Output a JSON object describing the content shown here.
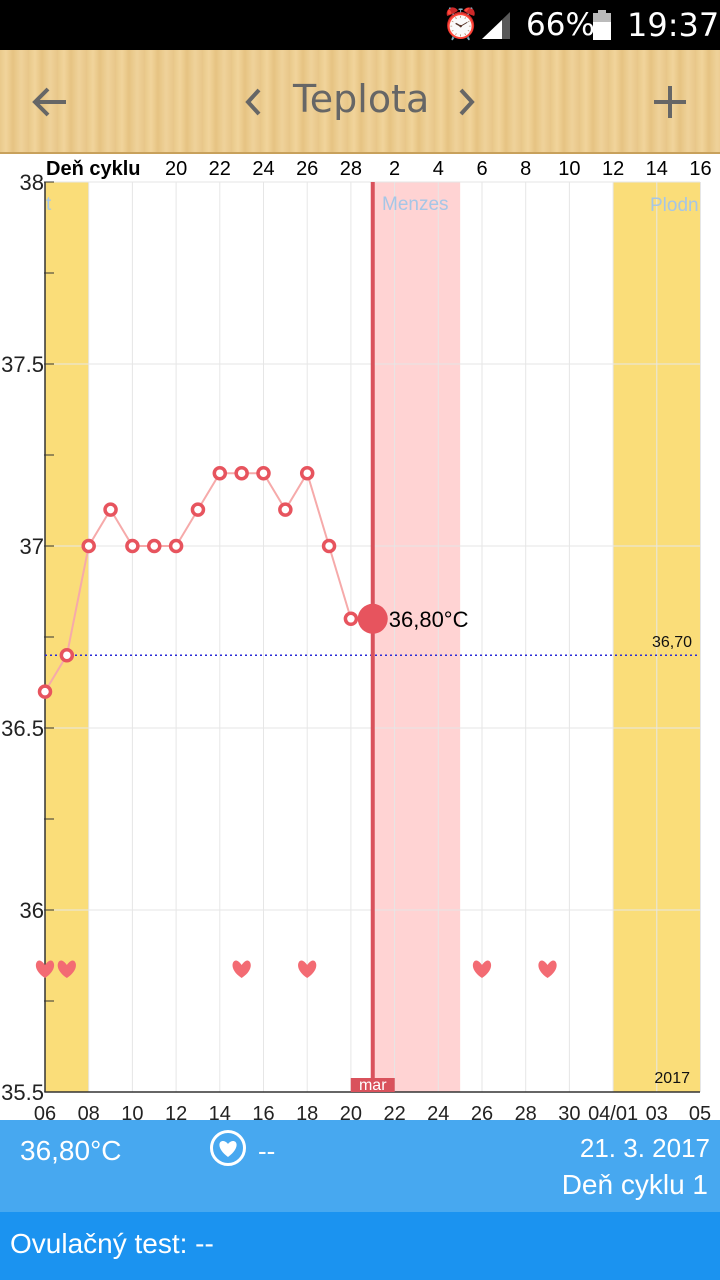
{
  "status": {
    "battery": "66%",
    "time": "19:37",
    "icons": [
      "alarm-icon",
      "signal-icon",
      "battery-icon"
    ]
  },
  "toolbar": {
    "title": "Teplota",
    "back_icon": "arrow-left-icon",
    "prev_icon": "chevron-left-icon",
    "next_icon": "chevron-right-icon",
    "add_icon": "plus-icon"
  },
  "chart_data": {
    "type": "line",
    "top_axis_title": "Deň cyklu",
    "top_ticks": [
      "20",
      "22",
      "24",
      "26",
      "28",
      "2",
      "4",
      "6",
      "8",
      "10",
      "12",
      "14",
      "16"
    ],
    "y_ticks": [
      "38",
      "37.5",
      "37",
      "36.5",
      "36",
      "35.5"
    ],
    "ylim": [
      35.5,
      38
    ],
    "bottom_ticks": [
      "06",
      "08",
      "10",
      "12",
      "14",
      "16",
      "18",
      "20",
      "22",
      "24",
      "26",
      "28",
      "30",
      "04/01",
      "03",
      "05"
    ],
    "month_label": "mar",
    "year_label": "2017",
    "band_labels": {
      "fertile_left": "t",
      "menses": "Menzes",
      "fertile_right": "Plodn"
    },
    "coverline": {
      "value": 36.7,
      "label": "36,70"
    },
    "x_dates": [
      "06.03",
      "07.03",
      "08.03",
      "09.03",
      "10.03",
      "11.03",
      "12.03",
      "13.03",
      "14.03",
      "15.03",
      "16.03",
      "17.03",
      "18.03",
      "19.03",
      "20.03",
      "21.03"
    ],
    "series": [
      {
        "values": [
          36.6,
          36.7,
          37.0,
          37.1,
          37.0,
          37.0,
          37.0,
          37.1,
          37.2,
          37.2,
          37.2,
          37.1,
          37.2,
          37.0,
          36.8,
          36.8
        ]
      }
    ],
    "selected": {
      "date": "21.03",
      "value": 36.8,
      "label": "36,80°C"
    },
    "hearts": [
      "06.03",
      "07.03",
      "15.03",
      "18.03",
      "26.03",
      "29.03"
    ],
    "colors": {
      "fertile": "#fadd79",
      "menses": "#ffd3d3",
      "line": "#f6aaaa",
      "marker": "#e7545e",
      "coverline": "#2b2bd6"
    }
  },
  "info": {
    "temp": "36,80°C",
    "heart_value": "--",
    "date": "21. 3. 2017",
    "cycle_day": "Deň cyklu 1"
  },
  "ovulation": {
    "label": "Ovulačný test: --"
  }
}
